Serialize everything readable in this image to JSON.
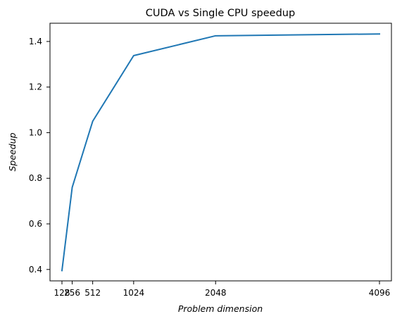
{
  "chart_data": {
    "type": "line",
    "title": "CUDA vs Single CPU speedup",
    "xlabel": "Problem dimension",
    "ylabel": "Speedup",
    "xlim": [
      128,
      4096
    ],
    "ylim": [
      0.35,
      1.48
    ],
    "x_ticks": [
      128,
      256,
      512,
      1024,
      2048,
      4096
    ],
    "y_ticks": [
      0.4,
      0.6,
      0.8,
      1.0,
      1.2,
      1.4
    ],
    "y_tick_labels": [
      "0.4",
      "0.6",
      "0.8",
      "1.0",
      "1.2",
      "1.4"
    ],
    "grid": false,
    "series": [
      {
        "color": "#1f77b4",
        "points": [
          {
            "x": 128,
            "y": 0.395
          },
          {
            "x": 256,
            "y": 0.76
          },
          {
            "x": 512,
            "y": 1.05
          },
          {
            "x": 1024,
            "y": 1.338
          },
          {
            "x": 2048,
            "y": 1.425
          },
          {
            "x": 4096,
            "y": 1.433
          }
        ]
      }
    ]
  }
}
